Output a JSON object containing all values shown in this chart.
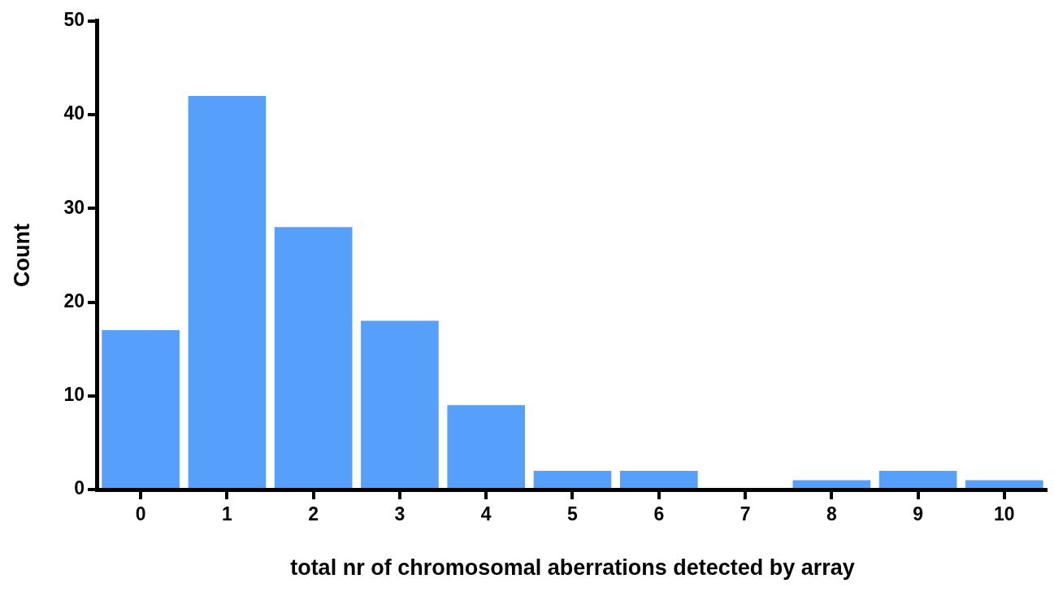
{
  "chart_data": {
    "type": "bar",
    "xlabel": "total nr of chromosomal aberrations detected by array",
    "ylabel": "Count",
    "categories": [
      "0",
      "1",
      "2",
      "3",
      "4",
      "5",
      "6",
      "7",
      "8",
      "9",
      "10"
    ],
    "values": [
      17,
      42,
      28,
      18,
      9,
      2,
      2,
      0,
      1,
      2,
      1
    ],
    "color": "#56a0fb",
    "ylim": [
      0,
      50
    ],
    "yticks": [
      0,
      10,
      20,
      30,
      40,
      50
    ]
  }
}
